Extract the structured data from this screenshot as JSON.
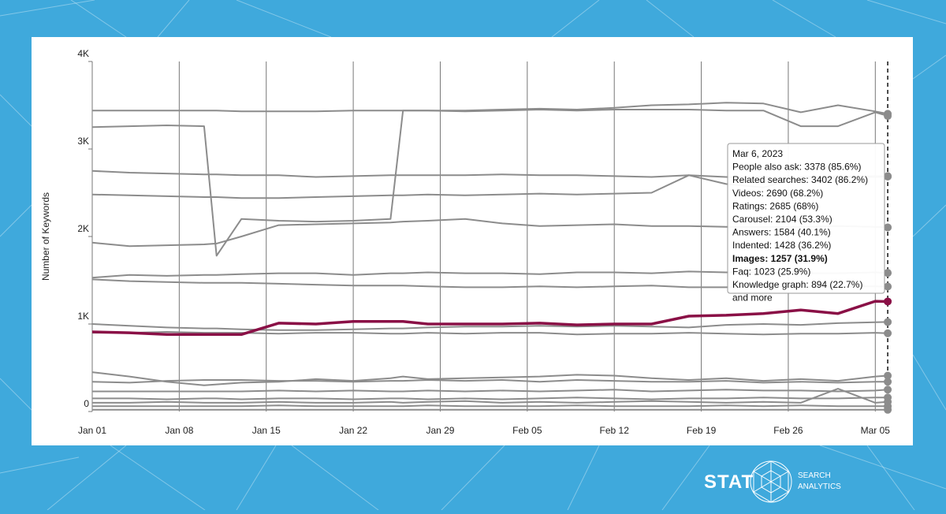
{
  "chart_data": {
    "type": "line",
    "y_label": "Number of Keywords",
    "x": [
      0,
      3,
      6,
      9,
      10,
      12,
      15,
      18,
      21,
      24,
      25,
      27,
      30,
      33,
      36,
      39,
      42,
      45,
      48,
      51,
      54,
      57,
      60,
      63,
      64
    ],
    "xlim": [
      0,
      65.2
    ],
    "xticks": [
      {
        "value": 0,
        "label": "Jan 01"
      },
      {
        "value": 7,
        "label": "Jan 08"
      },
      {
        "value": 14,
        "label": "Jan 15"
      },
      {
        "value": 21,
        "label": "Jan 22"
      },
      {
        "value": 28,
        "label": "Jan 29"
      },
      {
        "value": 35,
        "label": "Feb 05"
      },
      {
        "value": 42,
        "label": "Feb 12"
      },
      {
        "value": 49,
        "label": "Feb 19"
      },
      {
        "value": 56,
        "label": "Feb 26"
      },
      {
        "value": 63,
        "label": "Mar 05"
      }
    ],
    "ylim": [
      0,
      4000
    ],
    "yticks": [
      0,
      {
        "value": 1000,
        "label": "1K"
      },
      {
        "value": 2000,
        "label": "2K"
      },
      {
        "value": 3000,
        "label": "3K"
      },
      {
        "value": 4000,
        "label": "4K"
      }
    ],
    "grid": "x",
    "series": [
      {
        "name": "People also ask",
        "color": "#8c8c8c",
        "values": [
          3250,
          3260,
          3270,
          3260,
          1780,
          2200,
          2180,
          2170,
          2180,
          2200,
          3440,
          3440,
          3430,
          3440,
          3450,
          3440,
          3450,
          3450,
          3450,
          3440,
          3440,
          3260,
          3260,
          3420,
          3378
        ]
      },
      {
        "name": "Related searches",
        "color": "#8c8c8c",
        "values": [
          3440,
          3440,
          3440,
          3440,
          3440,
          3430,
          3430,
          3430,
          3440,
          3440,
          3440,
          3440,
          3440,
          3450,
          3460,
          3450,
          3470,
          3500,
          3510,
          3530,
          3520,
          3420,
          3500,
          3430,
          3402
        ]
      },
      {
        "name": "Videos",
        "color": "#8c8c8c",
        "values": [
          2750,
          2730,
          2720,
          2710,
          2710,
          2700,
          2700,
          2680,
          2690,
          2700,
          2700,
          2700,
          2700,
          2710,
          2700,
          2700,
          2690,
          2680,
          2700,
          2680,
          2680,
          2660,
          2680,
          2690,
          2690
        ]
      },
      {
        "name": "Ratings",
        "color": "#8c8c8c",
        "values": [
          2480,
          2470,
          2460,
          2450,
          2450,
          2440,
          2440,
          2450,
          2460,
          2470,
          2470,
          2480,
          2470,
          2480,
          2490,
          2480,
          2490,
          2500,
          2700,
          2600,
          2560,
          2680,
          2690,
          2680,
          2685
        ]
      },
      {
        "name": "Carousel",
        "color": "#8c8c8c",
        "values": [
          1930,
          1890,
          1900,
          1910,
          1920,
          2000,
          2130,
          2140,
          2150,
          2160,
          2170,
          2180,
          2200,
          2150,
          2120,
          2130,
          2140,
          2120,
          2120,
          2110,
          2110,
          2110,
          2120,
          2110,
          2104
        ]
      },
      {
        "name": "Answers",
        "color": "#8c8c8c",
        "values": [
          1530,
          1560,
          1550,
          1560,
          1560,
          1570,
          1580,
          1580,
          1560,
          1580,
          1580,
          1590,
          1580,
          1580,
          1570,
          1590,
          1590,
          1580,
          1600,
          1590,
          1590,
          1580,
          1580,
          1590,
          1584
        ]
      },
      {
        "name": "Indented",
        "color": "#8c8c8c",
        "values": [
          1510,
          1490,
          1480,
          1470,
          1470,
          1470,
          1460,
          1450,
          1440,
          1440,
          1440,
          1430,
          1420,
          1420,
          1430,
          1420,
          1430,
          1440,
          1420,
          1420,
          1430,
          1420,
          1430,
          1430,
          1428
        ]
      },
      {
        "name": "Faq",
        "color": "#8c8c8c",
        "values": [
          1000,
          980,
          960,
          950,
          950,
          940,
          930,
          930,
          940,
          950,
          950,
          960,
          970,
          970,
          980,
          970,
          980,
          970,
          960,
          990,
          1000,
          990,
          1010,
          1020,
          1023
        ]
      },
      {
        "name": "Knowledge graph",
        "color": "#8c8c8c",
        "values": [
          900,
          900,
          910,
          900,
          900,
          900,
          890,
          900,
          900,
          890,
          890,
          900,
          890,
          900,
          900,
          880,
          890,
          890,
          900,
          890,
          880,
          890,
          890,
          900,
          894
        ]
      },
      {
        "color": "#8c8c8c",
        "values": [
          450,
          400,
          340,
          300,
          310,
          330,
          340,
          370,
          350,
          380,
          400,
          370,
          380,
          390,
          400,
          420,
          410,
          380,
          360,
          380,
          350,
          370,
          350,
          400,
          410
        ]
      },
      {
        "color": "#8c8c8c",
        "values": [
          340,
          330,
          350,
          360,
          360,
          360,
          350,
          350,
          340,
          350,
          350,
          360,
          350,
          360,
          340,
          360,
          350,
          340,
          340,
          350,
          330,
          340,
          330,
          340,
          340
        ]
      },
      {
        "color": "#8c8c8c",
        "values": [
          230,
          230,
          230,
          230,
          230,
          230,
          240,
          230,
          240,
          230,
          230,
          240,
          230,
          240,
          230,
          240,
          250,
          230,
          240,
          250,
          240,
          240,
          230,
          240,
          250
        ]
      },
      {
        "color": "#8c8c8c",
        "values": [
          150,
          150,
          140,
          150,
          150,
          140,
          150,
          150,
          140,
          150,
          150,
          140,
          150,
          140,
          150,
          160,
          150,
          140,
          150,
          150,
          160,
          150,
          150,
          160,
          160
        ]
      },
      {
        "color": "#8c8c8c",
        "values": [
          100,
          100,
          110,
          100,
          100,
          100,
          110,
          100,
          100,
          110,
          100,
          110,
          120,
          100,
          110,
          100,
          110,
          120,
          110,
          100,
          110,
          100,
          260,
          100,
          110
        ]
      },
      {
        "color": "#8c8c8c",
        "values": [
          60,
          60,
          60,
          60,
          60,
          60,
          70,
          60,
          60,
          60,
          60,
          70,
          60,
          60,
          60,
          70,
          60,
          60,
          60,
          70,
          60,
          70,
          60,
          60,
          60
        ]
      },
      {
        "color": "#8c8c8c",
        "values": [
          20,
          20,
          20,
          20,
          20,
          20,
          20,
          20,
          20,
          20,
          20,
          20,
          20,
          20,
          20,
          20,
          20,
          20,
          20,
          20,
          20,
          20,
          20,
          20,
          20
        ]
      },
      {
        "name": "Images",
        "color": "#8a1046",
        "highlight": true,
        "values": [
          910,
          900,
          880,
          880,
          880,
          880,
          1010,
          1000,
          1030,
          1030,
          1030,
          1000,
          1000,
          1000,
          1010,
          990,
          1000,
          1000,
          1090,
          1100,
          1120,
          1160,
          1120,
          1260,
          1257
        ]
      }
    ],
    "tooltip": {
      "date": "Mar 6, 2023",
      "bold_line": 7,
      "lines": [
        "People also ask: 3378 (85.6%)",
        "Related searches: 3402 (86.2%)",
        "Videos: 2690 (68.2%)",
        "Ratings: 2685 (68%)",
        "Carousel: 2104 (53.3%)",
        "Answers: 1584 (40.1%)",
        "Indented: 1428 (36.2%)",
        "Images: 1257 (31.9%)",
        "Faq: 1023 (25.9%)",
        "Knowledge graph: 894 (22.7%)",
        "and more"
      ]
    }
  },
  "brand": {
    "logo": "STAT",
    "tagline_1": "SEARCH",
    "tagline_2": "ANALYTICS"
  }
}
